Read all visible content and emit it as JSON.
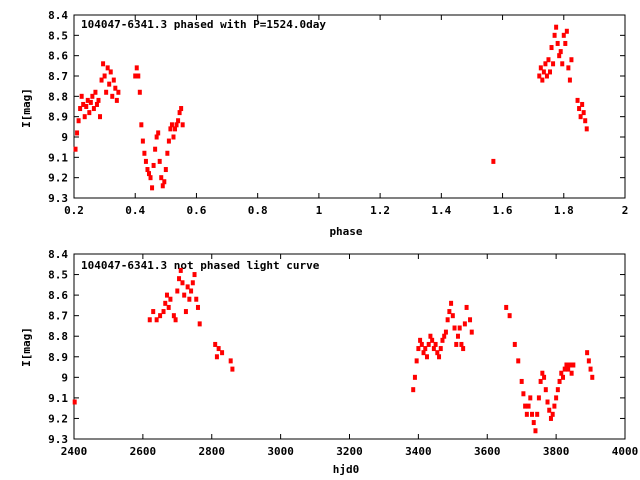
{
  "chart_data": [
    {
      "id": "phased",
      "type": "scatter",
      "title": "104047-6341.3 phased with P=1524.0day",
      "xlabel": "phase",
      "ylabel": "I[mag]",
      "xlim": [
        0.2,
        2.0
      ],
      "ylim": [
        8.4,
        9.3
      ],
      "y_inverted": true,
      "xticks": [
        0.2,
        0.4,
        0.6,
        0.8,
        1.0,
        1.2,
        1.4,
        1.6,
        1.8,
        2.0
      ],
      "xtick_labels": [
        "0.2",
        "0.4",
        "0.6",
        "0.8",
        "1",
        "1.2",
        "1.4",
        "1.6",
        "1.8",
        "2"
      ],
      "yticks": [
        8.4,
        8.5,
        8.6,
        8.7,
        8.8,
        8.9,
        9.0,
        9.1,
        9.2,
        9.3
      ],
      "ytick_labels": [
        "8.4",
        "8.5",
        "8.6",
        "8.7",
        "8.8",
        "8.9",
        "9",
        "9.1",
        "9.2",
        "9.3"
      ],
      "grid": false,
      "marker_color": "#ff0000",
      "points": [
        [
          0.205,
          9.06
        ],
        [
          0.21,
          8.98
        ],
        [
          0.215,
          8.92
        ],
        [
          0.22,
          8.86
        ],
        [
          0.225,
          8.8
        ],
        [
          0.23,
          8.84
        ],
        [
          0.235,
          8.9
        ],
        [
          0.24,
          8.85
        ],
        [
          0.245,
          8.82
        ],
        [
          0.25,
          8.88
        ],
        [
          0.255,
          8.83
        ],
        [
          0.26,
          8.8
        ],
        [
          0.265,
          8.86
        ],
        [
          0.27,
          8.78
        ],
        [
          0.275,
          8.84
        ],
        [
          0.28,
          8.82
        ],
        [
          0.285,
          8.9
        ],
        [
          0.29,
          8.72
        ],
        [
          0.295,
          8.64
        ],
        [
          0.3,
          8.7
        ],
        [
          0.305,
          8.78
        ],
        [
          0.31,
          8.66
        ],
        [
          0.315,
          8.74
        ],
        [
          0.32,
          8.68
        ],
        [
          0.325,
          8.8
        ],
        [
          0.33,
          8.72
        ],
        [
          0.335,
          8.76
        ],
        [
          0.34,
          8.82
        ],
        [
          0.345,
          8.78
        ],
        [
          0.4,
          8.7
        ],
        [
          0.405,
          8.66
        ],
        [
          0.41,
          8.7
        ],
        [
          0.415,
          8.78
        ],
        [
          0.42,
          8.94
        ],
        [
          0.425,
          9.02
        ],
        [
          0.43,
          9.08
        ],
        [
          0.435,
          9.12
        ],
        [
          0.44,
          9.16
        ],
        [
          0.445,
          9.18
        ],
        [
          0.45,
          9.2
        ],
        [
          0.455,
          9.25
        ],
        [
          0.46,
          9.14
        ],
        [
          0.465,
          9.06
        ],
        [
          0.47,
          9.0
        ],
        [
          0.475,
          8.98
        ],
        [
          0.48,
          9.12
        ],
        [
          0.485,
          9.2
        ],
        [
          0.49,
          9.24
        ],
        [
          0.495,
          9.22
        ],
        [
          0.5,
          9.16
        ],
        [
          0.505,
          9.08
        ],
        [
          0.51,
          9.02
        ],
        [
          0.515,
          8.96
        ],
        [
          0.52,
          8.94
        ],
        [
          0.525,
          9.0
        ],
        [
          0.53,
          8.96
        ],
        [
          0.535,
          8.94
        ],
        [
          0.54,
          8.92
        ],
        [
          0.545,
          8.88
        ],
        [
          0.55,
          8.86
        ],
        [
          0.555,
          8.94
        ],
        [
          1.57,
          9.12
        ],
        [
          1.72,
          8.7
        ],
        [
          1.725,
          8.66
        ],
        [
          1.73,
          8.72
        ],
        [
          1.735,
          8.68
        ],
        [
          1.74,
          8.64
        ],
        [
          1.745,
          8.7
        ],
        [
          1.75,
          8.62
        ],
        [
          1.755,
          8.68
        ],
        [
          1.76,
          8.56
        ],
        [
          1.765,
          8.64
        ],
        [
          1.77,
          8.5
        ],
        [
          1.775,
          8.46
        ],
        [
          1.78,
          8.54
        ],
        [
          1.785,
          8.6
        ],
        [
          1.79,
          8.58
        ],
        [
          1.795,
          8.64
        ],
        [
          1.8,
          8.5
        ],
        [
          1.805,
          8.54
        ],
        [
          1.81,
          8.48
        ],
        [
          1.815,
          8.66
        ],
        [
          1.82,
          8.72
        ],
        [
          1.825,
          8.62
        ],
        [
          1.845,
          8.82
        ],
        [
          1.85,
          8.86
        ],
        [
          1.855,
          8.9
        ],
        [
          1.86,
          8.84
        ],
        [
          1.865,
          8.88
        ],
        [
          1.87,
          8.92
        ],
        [
          1.875,
          8.96
        ]
      ]
    },
    {
      "id": "unphased",
      "type": "scatter",
      "title": "104047-6341.3 not phased light curve",
      "xlabel": "hjd0",
      "ylabel": "I[mag]",
      "xlim": [
        2400,
        4000
      ],
      "ylim": [
        8.4,
        9.3
      ],
      "y_inverted": true,
      "xticks": [
        2400,
        2600,
        2800,
        3000,
        3200,
        3400,
        3600,
        3800,
        4000
      ],
      "xtick_labels": [
        "2400",
        "2600",
        "2800",
        "3000",
        "3200",
        "3400",
        "3600",
        "3800",
        "4000"
      ],
      "yticks": [
        8.4,
        8.5,
        8.6,
        8.7,
        8.8,
        8.9,
        9.0,
        9.1,
        9.2,
        9.3
      ],
      "ytick_labels": [
        "8.4",
        "8.5",
        "8.6",
        "8.7",
        "8.8",
        "8.9",
        "9",
        "9.1",
        "9.2",
        "9.3"
      ],
      "grid": false,
      "marker_color": "#ff0000",
      "points": [
        [
          2402,
          9.12
        ],
        [
          2620,
          8.72
        ],
        [
          2630,
          8.68
        ],
        [
          2640,
          8.72
        ],
        [
          2650,
          8.7
        ],
        [
          2660,
          8.68
        ],
        [
          2665,
          8.64
        ],
        [
          2670,
          8.6
        ],
        [
          2675,
          8.66
        ],
        [
          2680,
          8.62
        ],
        [
          2690,
          8.7
        ],
        [
          2695,
          8.72
        ],
        [
          2700,
          8.58
        ],
        [
          2705,
          8.52
        ],
        [
          2710,
          8.48
        ],
        [
          2715,
          8.54
        ],
        [
          2720,
          8.6
        ],
        [
          2725,
          8.68
        ],
        [
          2730,
          8.56
        ],
        [
          2735,
          8.62
        ],
        [
          2740,
          8.58
        ],
        [
          2745,
          8.54
        ],
        [
          2750,
          8.5
        ],
        [
          2755,
          8.62
        ],
        [
          2760,
          8.66
        ],
        [
          2765,
          8.74
        ],
        [
          2810,
          8.84
        ],
        [
          2815,
          8.9
        ],
        [
          2820,
          8.86
        ],
        [
          2830,
          8.88
        ],
        [
          2855,
          8.92
        ],
        [
          2860,
          8.96
        ],
        [
          3385,
          9.06
        ],
        [
          3390,
          9.0
        ],
        [
          3395,
          8.92
        ],
        [
          3400,
          8.86
        ],
        [
          3405,
          8.82
        ],
        [
          3410,
          8.84
        ],
        [
          3415,
          8.88
        ],
        [
          3420,
          8.86
        ],
        [
          3425,
          8.9
        ],
        [
          3430,
          8.84
        ],
        [
          3435,
          8.8
        ],
        [
          3440,
          8.82
        ],
        [
          3445,
          8.86
        ],
        [
          3450,
          8.84
        ],
        [
          3455,
          8.88
        ],
        [
          3460,
          8.9
        ],
        [
          3465,
          8.86
        ],
        [
          3470,
          8.82
        ],
        [
          3475,
          8.8
        ],
        [
          3480,
          8.78
        ],
        [
          3485,
          8.72
        ],
        [
          3490,
          8.68
        ],
        [
          3495,
          8.64
        ],
        [
          3500,
          8.7
        ],
        [
          3505,
          8.76
        ],
        [
          3510,
          8.84
        ],
        [
          3515,
          8.8
        ],
        [
          3520,
          8.76
        ],
        [
          3525,
          8.84
        ],
        [
          3530,
          8.86
        ],
        [
          3535,
          8.74
        ],
        [
          3540,
          8.66
        ],
        [
          3550,
          8.72
        ],
        [
          3555,
          8.78
        ],
        [
          3655,
          8.66
        ],
        [
          3665,
          8.7
        ],
        [
          3680,
          8.84
        ],
        [
          3690,
          8.92
        ],
        [
          3700,
          9.02
        ],
        [
          3705,
          9.08
        ],
        [
          3710,
          9.14
        ],
        [
          3715,
          9.18
        ],
        [
          3720,
          9.14
        ],
        [
          3725,
          9.1
        ],
        [
          3730,
          9.18
        ],
        [
          3735,
          9.22
        ],
        [
          3740,
          9.26
        ],
        [
          3745,
          9.18
        ],
        [
          3750,
          9.1
        ],
        [
          3755,
          9.02
        ],
        [
          3760,
          8.98
        ],
        [
          3765,
          9.0
        ],
        [
          3770,
          9.06
        ],
        [
          3775,
          9.12
        ],
        [
          3780,
          9.16
        ],
        [
          3785,
          9.2
        ],
        [
          3790,
          9.18
        ],
        [
          3795,
          9.14
        ],
        [
          3800,
          9.1
        ],
        [
          3805,
          9.06
        ],
        [
          3810,
          9.02
        ],
        [
          3815,
          8.98
        ],
        [
          3820,
          9.0
        ],
        [
          3825,
          8.96
        ],
        [
          3830,
          8.94
        ],
        [
          3835,
          8.96
        ],
        [
          3840,
          8.94
        ],
        [
          3845,
          8.98
        ],
        [
          3850,
          8.94
        ],
        [
          3890,
          8.88
        ],
        [
          3895,
          8.92
        ],
        [
          3900,
          8.96
        ],
        [
          3905,
          9.0
        ]
      ]
    }
  ]
}
